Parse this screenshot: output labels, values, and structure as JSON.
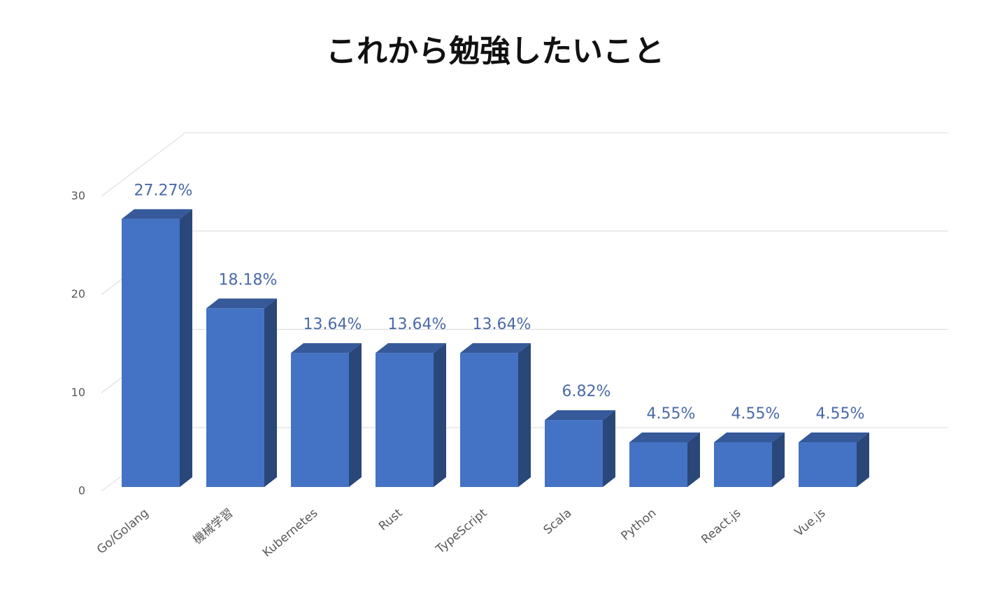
{
  "chart_data": {
    "type": "bar3d",
    "title": "これから勉強したいこと",
    "categories": [
      "Go/Golang",
      "機械学習",
      "Kubernetes",
      "Rust",
      "TypeScript",
      "Scala",
      "Python",
      "React.js",
      "Vue.js"
    ],
    "values": [
      27.27,
      18.18,
      13.64,
      13.64,
      13.64,
      6.82,
      4.55,
      4.55,
      4.55
    ],
    "value_labels": [
      "27.27%",
      "18.18%",
      "13.64%",
      "13.64%",
      "13.64%",
      "6.82%",
      "4.55%",
      "4.55%",
      "4.55%"
    ],
    "color": "#4472c4",
    "ylim": [
      0,
      30
    ],
    "yticks": [
      0,
      10,
      20,
      30
    ],
    "grid": true
  }
}
